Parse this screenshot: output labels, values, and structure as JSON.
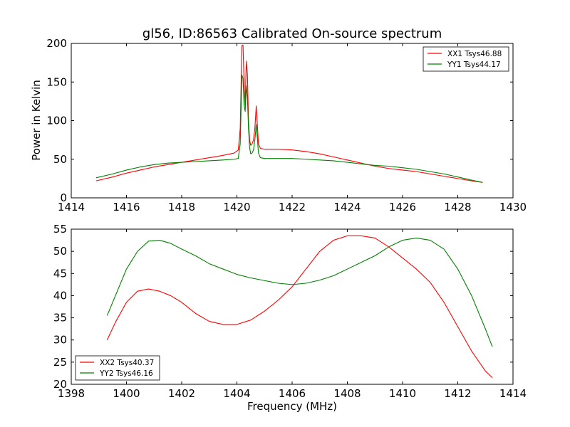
{
  "chart_data": [
    {
      "type": "line",
      "title": "gl56, ID:86563 Calibrated On-source spectrum",
      "xlabel": "",
      "ylabel": "Power in Kelvin",
      "xlim": [
        1414,
        1430
      ],
      "ylim": [
        0,
        200
      ],
      "xticks": [
        "1414",
        "1416",
        "1418",
        "1420",
        "1422",
        "1424",
        "1426",
        "1428",
        "1430"
      ],
      "yticks": [
        "0",
        "50",
        "100",
        "150",
        "200"
      ],
      "grid": false,
      "legend": "top-right",
      "series": [
        {
          "name": "XX1 Tsys46.88",
          "color": "#ff0000",
          "x": [
            1414.9,
            1415.5,
            1416.0,
            1416.5,
            1417.0,
            1417.5,
            1418.0,
            1418.5,
            1419.0,
            1419.5,
            1419.9,
            1420.05,
            1420.12,
            1420.18,
            1420.22,
            1420.26,
            1420.3,
            1420.34,
            1420.38,
            1420.42,
            1420.46,
            1420.5,
            1420.55,
            1420.6,
            1420.65,
            1420.7,
            1420.74,
            1420.78,
            1420.85,
            1421.0,
            1421.5,
            1422.0,
            1422.5,
            1423.0,
            1423.5,
            1424.0,
            1424.5,
            1425.0,
            1425.5,
            1426.0,
            1426.5,
            1427.0,
            1427.5,
            1428.0,
            1428.5,
            1428.9
          ],
          "y": [
            22,
            27,
            32,
            36,
            40,
            43,
            46,
            49,
            52,
            55,
            58,
            62,
            90,
            197,
            198,
            150,
            120,
            177,
            160,
            100,
            75,
            68,
            70,
            75,
            90,
            119,
            95,
            70,
            64,
            63,
            63,
            62,
            60,
            57,
            53,
            49,
            45,
            41,
            38,
            36,
            34,
            31,
            28,
            25,
            22,
            20
          ]
        },
        {
          "name": "YY1 Tsys44.17",
          "color": "#008000",
          "x": [
            1414.9,
            1415.5,
            1416.0,
            1416.5,
            1417.0,
            1417.5,
            1418.0,
            1418.5,
            1419.0,
            1419.5,
            1419.9,
            1420.05,
            1420.12,
            1420.18,
            1420.22,
            1420.26,
            1420.3,
            1420.34,
            1420.38,
            1420.42,
            1420.46,
            1420.5,
            1420.55,
            1420.6,
            1420.65,
            1420.7,
            1420.74,
            1420.78,
            1420.85,
            1421.0,
            1421.5,
            1422.0,
            1422.5,
            1423.0,
            1423.5,
            1424.0,
            1424.5,
            1425.0,
            1425.5,
            1426.0,
            1426.5,
            1427.0,
            1427.5,
            1428.0,
            1428.5,
            1428.9
          ],
          "y": [
            26,
            31,
            36,
            40,
            43,
            45,
            46,
            47,
            48,
            49,
            50,
            51,
            70,
            159,
            155,
            120,
            112,
            145,
            130,
            90,
            65,
            57,
            58,
            62,
            75,
            95,
            78,
            58,
            52,
            51,
            51,
            51,
            50,
            49,
            48,
            46,
            44,
            42,
            41,
            39,
            37,
            34,
            31,
            27,
            23,
            20
          ]
        }
      ]
    },
    {
      "type": "line",
      "title": "",
      "xlabel": "Frequency (MHz)",
      "ylabel": "",
      "xlim": [
        1398,
        1414
      ],
      "ylim": [
        20,
        55
      ],
      "xticks": [
        "1398",
        "1400",
        "1402",
        "1404",
        "1406",
        "1408",
        "1410",
        "1412",
        "1414"
      ],
      "yticks": [
        "20",
        "25",
        "30",
        "35",
        "40",
        "45",
        "50",
        "55"
      ],
      "grid": false,
      "legend": "bottom-left",
      "series": [
        {
          "name": "XX2 Tsys40.37",
          "color": "#ff0000",
          "x": [
            1399.3,
            1399.6,
            1400.0,
            1400.4,
            1400.8,
            1401.2,
            1401.6,
            1402.0,
            1402.5,
            1403.0,
            1403.5,
            1404.0,
            1404.5,
            1405.0,
            1405.5,
            1406.0,
            1406.5,
            1407.0,
            1407.5,
            1408.0,
            1408.5,
            1409.0,
            1409.5,
            1410.0,
            1410.5,
            1411.0,
            1411.5,
            1412.0,
            1412.5,
            1413.0,
            1413.25
          ],
          "y": [
            30,
            34,
            38.5,
            41,
            41.5,
            41,
            40,
            38.5,
            36,
            34.2,
            33.5,
            33.5,
            34.5,
            36.5,
            39,
            42,
            46,
            50,
            52.5,
            53.5,
            53.5,
            53,
            51,
            48.5,
            46,
            43,
            38.5,
            33,
            27.5,
            23,
            21.5
          ]
        },
        {
          "name": "YY2 Tsys46.16",
          "color": "#008000",
          "x": [
            1399.3,
            1399.6,
            1400.0,
            1400.4,
            1400.8,
            1401.2,
            1401.6,
            1402.0,
            1402.5,
            1403.0,
            1403.5,
            1404.0,
            1404.5,
            1405.0,
            1405.5,
            1406.0,
            1406.5,
            1407.0,
            1407.5,
            1408.0,
            1408.5,
            1409.0,
            1409.5,
            1410.0,
            1410.5,
            1411.0,
            1411.5,
            1412.0,
            1412.5,
            1413.0,
            1413.25
          ],
          "y": [
            35.5,
            40,
            46,
            50,
            52.3,
            52.5,
            51.8,
            50.5,
            49,
            47.2,
            46,
            44.8,
            44,
            43.4,
            42.8,
            42.5,
            42.8,
            43.5,
            44.5,
            46,
            47.5,
            49,
            51,
            52.5,
            53,
            52.5,
            50.5,
            46,
            40,
            32.5,
            28.5
          ]
        }
      ]
    }
  ]
}
